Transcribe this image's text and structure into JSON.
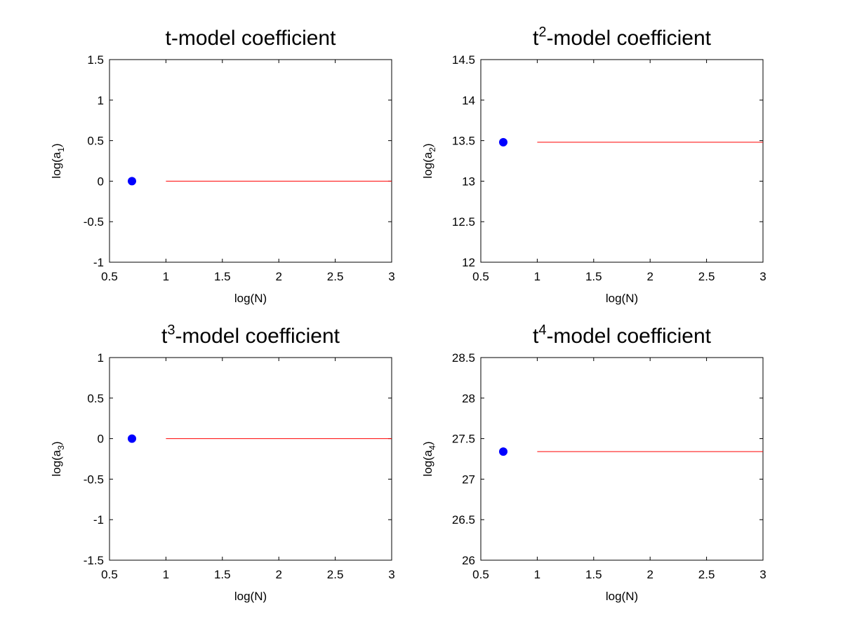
{
  "chart_data": [
    {
      "type": "scatter",
      "title": {
        "base": "t",
        "sup": "",
        "rest": "-model coefficient"
      },
      "xlabel": "log(N)",
      "ylabel": {
        "pre": "log(a",
        "sub": "1",
        "post": ")"
      },
      "xlim": [
        0.5,
        3
      ],
      "ylim": [
        -1,
        1.5
      ],
      "xticks": [
        "0.5",
        "1",
        "1.5",
        "2",
        "2.5",
        "3"
      ],
      "yticks": [
        "-1",
        "-0.5",
        "0",
        "0.5",
        "1",
        "1.5"
      ],
      "grid": false,
      "series": [
        {
          "kind": "points",
          "color": "#0000ff",
          "x": [
            0.699
          ],
          "y": [
            0
          ]
        },
        {
          "kind": "line",
          "color": "#ff0000",
          "x": [
            1,
            3
          ],
          "y": [
            0,
            0
          ]
        }
      ]
    },
    {
      "type": "scatter",
      "title": {
        "base": "t",
        "sup": "2",
        "rest": "-model coefficient"
      },
      "xlabel": "log(N)",
      "ylabel": {
        "pre": "log(a",
        "sub": "2",
        "post": ")"
      },
      "xlim": [
        0.5,
        3
      ],
      "ylim": [
        12,
        14.5
      ],
      "xticks": [
        "0.5",
        "1",
        "1.5",
        "2",
        "2.5",
        "3"
      ],
      "yticks": [
        "12",
        "12.5",
        "13",
        "13.5",
        "14",
        "14.5"
      ],
      "grid": false,
      "series": [
        {
          "kind": "points",
          "color": "#0000ff",
          "x": [
            0.699
          ],
          "y": [
            13.48
          ]
        },
        {
          "kind": "line",
          "color": "#ff0000",
          "x": [
            1,
            3
          ],
          "y": [
            13.48,
            13.48
          ]
        }
      ]
    },
    {
      "type": "scatter",
      "title": {
        "base": "t",
        "sup": "3",
        "rest": "-model coefficient"
      },
      "xlabel": "log(N)",
      "ylabel": {
        "pre": "log(a",
        "sub": "3",
        "post": ")"
      },
      "xlim": [
        0.5,
        3
      ],
      "ylim": [
        -1.5,
        1
      ],
      "xticks": [
        "0.5",
        "1",
        "1.5",
        "2",
        "2.5",
        "3"
      ],
      "yticks": [
        "-1.5",
        "-1",
        "-0.5",
        "0",
        "0.5",
        "1"
      ],
      "grid": false,
      "series": [
        {
          "kind": "points",
          "color": "#0000ff",
          "x": [
            0.699
          ],
          "y": [
            0
          ]
        },
        {
          "kind": "line",
          "color": "#ff0000",
          "x": [
            1,
            3
          ],
          "y": [
            0,
            0
          ]
        }
      ]
    },
    {
      "type": "scatter",
      "title": {
        "base": "t",
        "sup": "4",
        "rest": "-model coefficient"
      },
      "xlabel": "log(N)",
      "ylabel": {
        "pre": "log(a",
        "sub": "4",
        "post": ")"
      },
      "xlim": [
        0.5,
        3
      ],
      "ylim": [
        26,
        28.5
      ],
      "xticks": [
        "0.5",
        "1",
        "1.5",
        "2",
        "2.5",
        "3"
      ],
      "yticks": [
        "26",
        "26.5",
        "27",
        "27.5",
        "28",
        "28.5"
      ],
      "grid": false,
      "series": [
        {
          "kind": "points",
          "color": "#0000ff",
          "x": [
            0.699
          ],
          "y": [
            27.34
          ]
        },
        {
          "kind": "line",
          "color": "#ff0000",
          "x": [
            1,
            3
          ],
          "y": [
            27.34,
            27.34
          ]
        }
      ]
    }
  ]
}
